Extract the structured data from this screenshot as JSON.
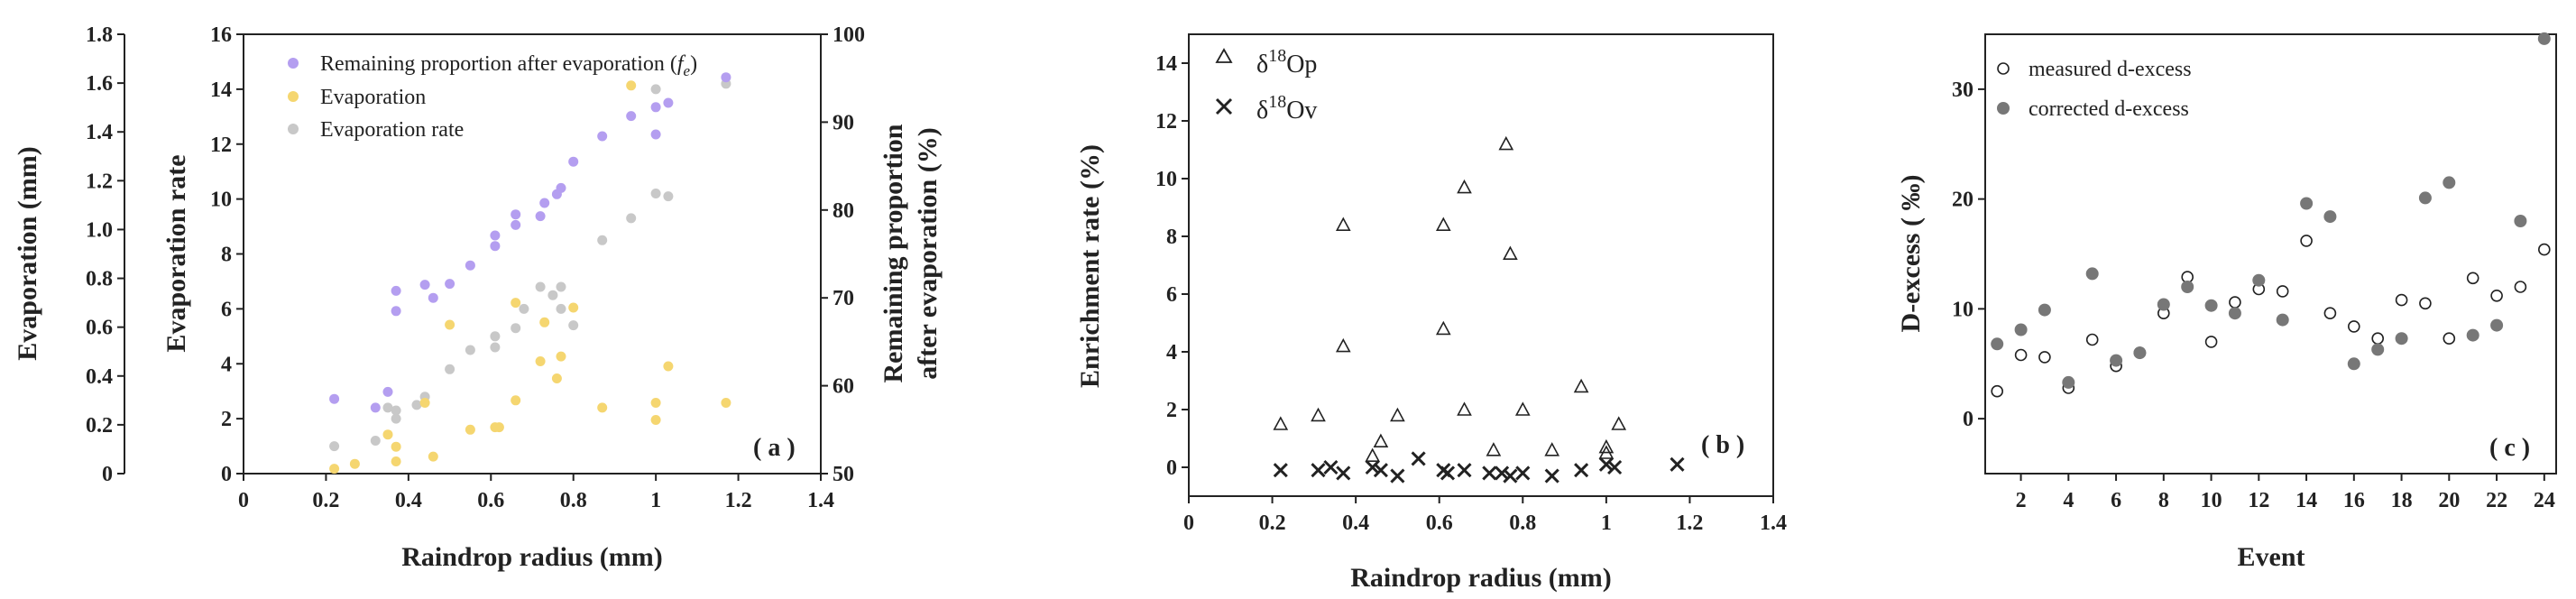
{
  "chart_data": [
    {
      "panel": "a",
      "type": "scatter",
      "panel_label": "( a )",
      "xlabel": "Raindrop radius (mm)",
      "xlim": [
        0,
        1.4
      ],
      "xticks": [
        "0",
        "0.2",
        "0.4",
        "0.6",
        "0.8",
        "1",
        "1.2",
        "1.4"
      ],
      "ylabel_far_left": "Evaporation (mm)",
      "ylim_far_left": [
        0,
        1.8
      ],
      "yticks_far_left": [
        "0",
        "0.2",
        "0.4",
        "0.6",
        "0.8",
        "1.0",
        "1.2",
        "1.4",
        "1.6",
        "1.8"
      ],
      "ylabel_left": "Evaporation rate",
      "ylim_left": [
        0,
        16
      ],
      "yticks_left": [
        "0",
        "2",
        "4",
        "6",
        "8",
        "10",
        "12",
        "14",
        "16"
      ],
      "ylabel_right_line1": "Remaining proportion",
      "ylabel_right_line2": "after evaporation (%)",
      "ylim_right": [
        50,
        100
      ],
      "yticks_right": [
        "50",
        "60",
        "70",
        "80",
        "90",
        "100"
      ],
      "legend": {
        "fe": "Remaining proportion after evaporation (",
        "fe_symbol": "f",
        "fe_sub": "e",
        "fe_close": ")",
        "evaporation": "Evaporation",
        "rate": "Evaporation rate"
      },
      "colors": {
        "fe": "#b49ef0",
        "evaporation": "#f5d670",
        "rate": "#c8c8c8"
      },
      "series": [
        {
          "key": "fe",
          "axis": "right",
          "x": [
            0.22,
            0.32,
            0.35,
            0.37,
            0.37,
            0.44,
            0.46,
            0.5,
            0.55,
            0.61,
            0.61,
            0.66,
            0.66,
            0.72,
            0.73,
            0.76,
            0.77,
            0.8,
            0.87,
            0.94,
            1.0,
            1.0,
            1.03,
            1.17
          ],
          "y": [
            58.5,
            57.5,
            59.3,
            68.5,
            70.8,
            71.5,
            70,
            71.6,
            73.7,
            75.9,
            77.1,
            78.3,
            79.5,
            79.3,
            80.8,
            81.8,
            82.5,
            85.5,
            88.4,
            90.7,
            88.6,
            91.7,
            92.2,
            95.1
          ]
        },
        {
          "key": "evaporation",
          "axis": "far_left",
          "x": [
            0.22,
            0.27,
            0.35,
            0.37,
            0.37,
            0.44,
            0.46,
            0.5,
            0.55,
            0.61,
            0.62,
            0.66,
            0.66,
            0.72,
            0.73,
            0.76,
            0.77,
            0.8,
            0.87,
            0.94,
            1.0,
            1.0,
            1.03,
            1.17
          ],
          "y": [
            0.02,
            0.04,
            0.16,
            0.05,
            0.11,
            0.29,
            0.07,
            0.61,
            0.18,
            0.19,
            0.19,
            0.7,
            0.3,
            0.46,
            0.62,
            0.39,
            0.48,
            0.68,
            0.27,
            1.59,
            0.22,
            0.29,
            0.44,
            0.29
          ]
        },
        {
          "key": "rate",
          "axis": "left",
          "x": [
            0.22,
            0.32,
            0.35,
            0.37,
            0.37,
            0.42,
            0.44,
            0.5,
            0.55,
            0.61,
            0.61,
            0.66,
            0.68,
            0.72,
            0.75,
            0.77,
            0.77,
            0.8,
            0.87,
            0.94,
            1.0,
            1.0,
            1.03,
            1.17
          ],
          "y": [
            1.0,
            1.2,
            2.4,
            2.0,
            2.3,
            2.5,
            2.8,
            3.8,
            4.5,
            4.6,
            5.0,
            5.3,
            6.0,
            6.8,
            6.5,
            6.0,
            6.8,
            5.4,
            8.5,
            9.3,
            14.0,
            10.2,
            10.1,
            14.2
          ]
        }
      ]
    },
    {
      "panel": "b",
      "type": "scatter",
      "panel_label": "( b )",
      "xlabel": "Raindrop radius (mm)",
      "xlim": [
        0,
        1.4
      ],
      "xticks": [
        "0",
        "0.2",
        "0.4",
        "0.6",
        "0.8",
        "1",
        "1.2",
        "1.4"
      ],
      "ylabel": "Enrichment rate (%)",
      "ylim": [
        -1,
        15
      ],
      "yticks": [
        "0",
        "2",
        "4",
        "6",
        "8",
        "10",
        "12",
        "14"
      ],
      "legend": {
        "p_pre": "δ",
        "p_sup": "18",
        "p_post": "Op",
        "v_pre": "δ",
        "v_sup": "18",
        "v_post": "Ov"
      },
      "series": [
        {
          "key": "d18Op",
          "marker": "triangle",
          "x": [
            0.22,
            0.31,
            0.37,
            0.37,
            0.44,
            0.46,
            0.5,
            0.61,
            0.61,
            0.66,
            0.66,
            0.73,
            0.76,
            0.77,
            0.8,
            0.87,
            0.94,
            1.0,
            1.0,
            1.03
          ],
          "y": [
            1.5,
            1.8,
            8.4,
            4.2,
            0.4,
            0.9,
            1.8,
            8.4,
            4.8,
            9.7,
            2.0,
            0.6,
            11.2,
            7.4,
            2.0,
            0.6,
            2.8,
            0.7,
            0.5,
            1.5
          ]
        },
        {
          "key": "d18Ov",
          "marker": "cross",
          "x": [
            0.22,
            0.31,
            0.34,
            0.37,
            0.44,
            0.46,
            0.5,
            0.55,
            0.61,
            0.62,
            0.66,
            0.72,
            0.75,
            0.77,
            0.8,
            0.87,
            0.94,
            1.0,
            1.02,
            1.17
          ],
          "y": [
            -0.1,
            -0.1,
            0.0,
            -0.2,
            0.0,
            -0.1,
            -0.3,
            0.3,
            -0.1,
            -0.2,
            -0.1,
            -0.2,
            -0.2,
            -0.3,
            -0.2,
            -0.3,
            -0.1,
            0.1,
            0.0,
            0.1
          ]
        }
      ]
    },
    {
      "panel": "c",
      "type": "scatter",
      "panel_label": "( c )",
      "xlabel": "Event",
      "xlim": [
        0.5,
        24.5
      ],
      "xticks": [
        "2",
        "4",
        "6",
        "8",
        "10",
        "12",
        "14",
        "16",
        "18",
        "20",
        "22",
        "24"
      ],
      "ylabel": "D-excess ( ‰)",
      "ylim": [
        -5,
        35
      ],
      "yticks": [
        "0",
        "10",
        "20",
        "30"
      ],
      "legend": {
        "measured": "measured d-excess",
        "corrected": "corrected d-excess"
      },
      "colors": {
        "corrected": "#777777"
      },
      "series": [
        {
          "key": "measured",
          "marker": "open-circle",
          "x": [
            1,
            2,
            3,
            4,
            5,
            6,
            7,
            8,
            9,
            10,
            11,
            12,
            13,
            14,
            15,
            16,
            17,
            18,
            19,
            20,
            21,
            22,
            23,
            24
          ],
          "y": [
            2.5,
            5.8,
            5.6,
            2.8,
            7.2,
            4.8,
            6.0,
            9.6,
            12.9,
            7.0,
            10.6,
            11.8,
            11.6,
            16.2,
            9.6,
            8.4,
            7.3,
            10.8,
            10.5,
            7.3,
            12.8,
            11.2,
            12.0,
            15.4
          ]
        },
        {
          "key": "corrected",
          "marker": "filled-circle",
          "x": [
            1,
            2,
            3,
            4,
            5,
            6,
            7,
            8,
            9,
            10,
            11,
            12,
            13,
            14,
            15,
            16,
            17,
            18,
            19,
            20,
            21,
            22,
            23,
            24
          ],
          "y": [
            6.8,
            8.1,
            9.9,
            3.3,
            13.2,
            5.3,
            6.0,
            10.4,
            12.0,
            10.3,
            9.6,
            12.6,
            9.0,
            19.6,
            18.4,
            5.0,
            6.3,
            7.3,
            20.1,
            21.5,
            7.6,
            8.5,
            18.0,
            34.6
          ]
        }
      ]
    }
  ]
}
